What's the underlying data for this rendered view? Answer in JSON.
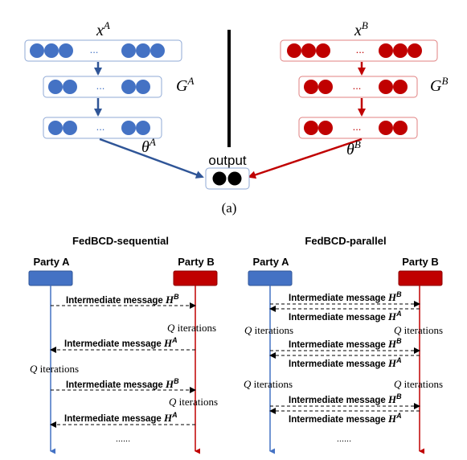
{
  "top": {
    "left_input_label": "x",
    "left_input_sup": "A",
    "left_hidden_label": "G",
    "left_hidden_sup": "A",
    "left_param_label": "θ",
    "left_param_sup": "A",
    "right_input_label": "x",
    "right_input_sup": "B",
    "right_hidden_label": "G",
    "right_hidden_sup": "B",
    "right_param_label": "θ",
    "right_param_sup": "B",
    "output_label": "output",
    "ellipsis": "...",
    "caption": "(a)"
  },
  "sequential": {
    "title": "FedBCD-sequential",
    "party_a": "Party A",
    "party_b": "Party B",
    "messages": [
      {
        "text": "Intermediate message ",
        "sym": "H",
        "sup": "B"
      },
      {
        "text": "Intermediate message ",
        "sym": "H",
        "sup": "A"
      },
      {
        "text": "Intermediate message ",
        "sym": "H",
        "sup": "B"
      },
      {
        "text": "Intermediate message ",
        "sym": "H",
        "sup": "A"
      }
    ],
    "q_iterations": [
      {
        "q": "Q",
        "text": " iterations"
      },
      {
        "q": "Q",
        "text": " iterations"
      },
      {
        "q": "Q",
        "text": " iterations"
      }
    ],
    "dots": "......"
  },
  "parallel": {
    "title": "FedBCD-parallel",
    "party_a": "Party A",
    "party_b": "Party B",
    "messages": [
      {
        "text": "Intermediate message ",
        "sym": "H",
        "sup": "B"
      },
      {
        "text": "Intermediate message ",
        "sym": "H",
        "sup": "A"
      },
      {
        "text": "Intermediate message ",
        "sym": "H",
        "sup": "B"
      },
      {
        "text": "Intermediate message ",
        "sym": "H",
        "sup": "A"
      },
      {
        "text": "Intermediate message ",
        "sym": "H",
        "sup": "B"
      },
      {
        "text": "Intermediate message ",
        "sym": "H",
        "sup": "A"
      }
    ],
    "q_iterations": [
      {
        "q": "Q",
        "text": " iterations"
      },
      {
        "q": "Q",
        "text": " iterations"
      },
      {
        "q": "Q",
        "text": " iterations"
      },
      {
        "q": "Q",
        "text": " iterations"
      }
    ],
    "dots": "......"
  },
  "colors": {
    "blue": "#4472c4",
    "blue_dark": "#2f5597",
    "red": "#c00000",
    "black": "#000000"
  }
}
